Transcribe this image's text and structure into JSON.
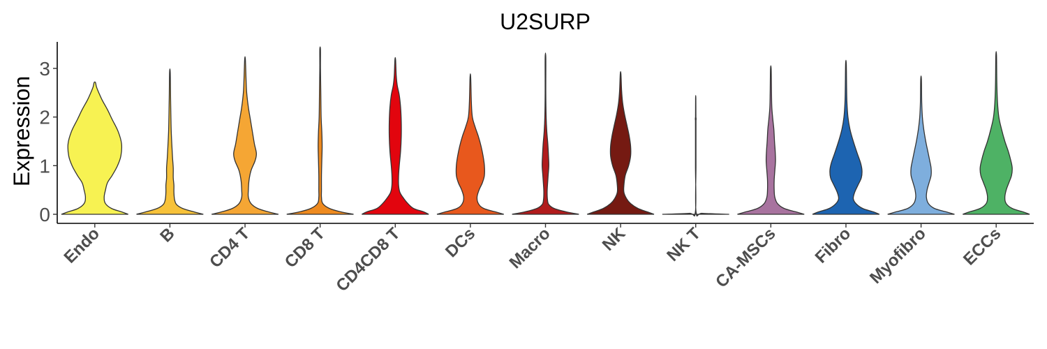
{
  "chart_data": {
    "type": "violin",
    "title": "U2SURP",
    "xlabel": "",
    "ylabel": "Expression",
    "ylim": [
      -0.16,
      3.56
    ],
    "yticks": [
      0,
      1,
      2,
      3
    ],
    "grid": false,
    "legend": "none",
    "categories": [
      {
        "name": "Endo",
        "color": "#F7F252",
        "max": 2.71,
        "profile": [
          [
            0,
            1.0
          ],
          [
            0.05,
            0.8
          ],
          [
            0.12,
            0.5
          ],
          [
            0.22,
            0.32
          ],
          [
            0.35,
            0.28
          ],
          [
            0.5,
            0.32
          ],
          [
            0.65,
            0.38
          ],
          [
            0.8,
            0.52
          ],
          [
            1.0,
            0.68
          ],
          [
            1.2,
            0.78
          ],
          [
            1.45,
            0.8
          ],
          [
            1.7,
            0.7
          ],
          [
            1.95,
            0.52
          ],
          [
            2.15,
            0.38
          ],
          [
            2.35,
            0.22
          ],
          [
            2.5,
            0.12
          ],
          [
            2.62,
            0.05
          ],
          [
            2.71,
            0.02
          ]
        ]
      },
      {
        "name": "B",
        "color": "#F7C23A",
        "max": 2.92,
        "profile": [
          [
            0,
            1.0
          ],
          [
            0.05,
            0.72
          ],
          [
            0.12,
            0.38
          ],
          [
            0.2,
            0.2
          ],
          [
            0.3,
            0.14
          ],
          [
            0.45,
            0.12
          ],
          [
            0.6,
            0.12
          ],
          [
            0.75,
            0.1
          ],
          [
            0.95,
            0.1
          ],
          [
            1.15,
            0.08
          ],
          [
            1.4,
            0.06
          ],
          [
            1.7,
            0.04
          ],
          [
            2.0,
            0.03
          ],
          [
            2.4,
            0.02
          ],
          [
            2.92,
            0.01
          ]
        ]
      },
      {
        "name": "CD4 T",
        "color": "#F5A634",
        "max": 3.19,
        "profile": [
          [
            0,
            1.0
          ],
          [
            0.05,
            0.7
          ],
          [
            0.12,
            0.38
          ],
          [
            0.22,
            0.18
          ],
          [
            0.35,
            0.1
          ],
          [
            0.5,
            0.1
          ],
          [
            0.7,
            0.12
          ],
          [
            0.9,
            0.18
          ],
          [
            1.1,
            0.3
          ],
          [
            1.25,
            0.34
          ],
          [
            1.45,
            0.28
          ],
          [
            1.7,
            0.22
          ],
          [
            1.95,
            0.16
          ],
          [
            2.2,
            0.1
          ],
          [
            2.5,
            0.05
          ],
          [
            2.8,
            0.03
          ],
          [
            3.19,
            0.01
          ]
        ]
      },
      {
        "name": "CD8 T",
        "color": "#EE8A1F",
        "max": 3.39,
        "profile": [
          [
            0,
            1.0
          ],
          [
            0.05,
            0.62
          ],
          [
            0.12,
            0.28
          ],
          [
            0.22,
            0.08
          ],
          [
            0.35,
            0.04
          ],
          [
            0.5,
            0.04
          ],
          [
            0.8,
            0.04
          ],
          [
            1.1,
            0.05
          ],
          [
            1.4,
            0.06
          ],
          [
            1.7,
            0.05
          ],
          [
            2.0,
            0.03
          ],
          [
            2.5,
            0.02
          ],
          [
            3.0,
            0.01
          ],
          [
            3.39,
            0.01
          ]
        ]
      },
      {
        "name": "CD4CD8 T",
        "color": "#E2050E",
        "max": 3.18,
        "profile": [
          [
            0,
            1.0
          ],
          [
            0.05,
            0.85
          ],
          [
            0.12,
            0.55
          ],
          [
            0.22,
            0.38
          ],
          [
            0.32,
            0.26
          ],
          [
            0.45,
            0.14
          ],
          [
            0.6,
            0.1
          ],
          [
            0.8,
            0.1
          ],
          [
            1.0,
            0.12
          ],
          [
            1.3,
            0.16
          ],
          [
            1.6,
            0.18
          ],
          [
            1.9,
            0.18
          ],
          [
            2.2,
            0.16
          ],
          [
            2.45,
            0.12
          ],
          [
            2.65,
            0.06
          ],
          [
            2.85,
            0.03
          ],
          [
            3.18,
            0.01
          ]
        ]
      },
      {
        "name": "DCs",
        "color": "#E8581D",
        "max": 2.82,
        "profile": [
          [
            0,
            1.0
          ],
          [
            0.05,
            0.75
          ],
          [
            0.12,
            0.4
          ],
          [
            0.22,
            0.24
          ],
          [
            0.35,
            0.2
          ],
          [
            0.5,
            0.26
          ],
          [
            0.65,
            0.36
          ],
          [
            0.8,
            0.42
          ],
          [
            1.0,
            0.42
          ],
          [
            1.2,
            0.38
          ],
          [
            1.4,
            0.32
          ],
          [
            1.6,
            0.24
          ],
          [
            1.8,
            0.14
          ],
          [
            2.0,
            0.06
          ],
          [
            2.3,
            0.03
          ],
          [
            2.82,
            0.01
          ]
        ]
      },
      {
        "name": "Macro",
        "color": "#B11B1C",
        "max": 3.22,
        "profile": [
          [
            0,
            1.0
          ],
          [
            0.05,
            0.62
          ],
          [
            0.12,
            0.26
          ],
          [
            0.2,
            0.1
          ],
          [
            0.3,
            0.06
          ],
          [
            0.45,
            0.05
          ],
          [
            0.6,
            0.06
          ],
          [
            0.8,
            0.08
          ],
          [
            1.0,
            0.1
          ],
          [
            1.2,
            0.09
          ],
          [
            1.45,
            0.07
          ],
          [
            1.7,
            0.04
          ],
          [
            2.0,
            0.02
          ],
          [
            2.5,
            0.01
          ],
          [
            3.22,
            0.01
          ]
        ]
      },
      {
        "name": "NK",
        "color": "#751A12",
        "max": 2.89,
        "profile": [
          [
            0,
            1.0
          ],
          [
            0.05,
            0.8
          ],
          [
            0.12,
            0.52
          ],
          [
            0.22,
            0.3
          ],
          [
            0.32,
            0.18
          ],
          [
            0.45,
            0.1
          ],
          [
            0.6,
            0.1
          ],
          [
            0.8,
            0.14
          ],
          [
            1.0,
            0.24
          ],
          [
            1.2,
            0.3
          ],
          [
            1.4,
            0.3
          ],
          [
            1.6,
            0.26
          ],
          [
            1.8,
            0.2
          ],
          [
            2.05,
            0.12
          ],
          [
            2.3,
            0.06
          ],
          [
            2.55,
            0.03
          ],
          [
            2.89,
            0.01
          ]
        ]
      },
      {
        "name": "NK T",
        "color": "#6E6E6E",
        "max": 2.39,
        "profile": [
          [
            0,
            1.0
          ],
          [
            0.02,
            0.2
          ],
          [
            0.05,
            0.01
          ],
          [
            1.0,
            0.008
          ],
          [
            1.9,
            0.008
          ],
          [
            1.95,
            0.012
          ],
          [
            2.0,
            0.006
          ],
          [
            2.39,
            0.004
          ]
        ]
      },
      {
        "name": "CA-MSCs",
        "color": "#A8739F",
        "max": 2.99,
        "profile": [
          [
            0,
            1.0
          ],
          [
            0.05,
            0.75
          ],
          [
            0.12,
            0.4
          ],
          [
            0.22,
            0.2
          ],
          [
            0.35,
            0.12
          ],
          [
            0.5,
            0.1
          ],
          [
            0.7,
            0.1
          ],
          [
            0.9,
            0.12
          ],
          [
            1.1,
            0.14
          ],
          [
            1.3,
            0.13
          ],
          [
            1.5,
            0.11
          ],
          [
            1.75,
            0.09
          ],
          [
            1.95,
            0.06
          ],
          [
            2.2,
            0.03
          ],
          [
            2.5,
            0.02
          ],
          [
            2.99,
            0.01
          ]
        ]
      },
      {
        "name": "Fibro",
        "color": "#1D64B1",
        "max": 3.1,
        "profile": [
          [
            0,
            1.0
          ],
          [
            0.05,
            0.82
          ],
          [
            0.12,
            0.5
          ],
          [
            0.22,
            0.3
          ],
          [
            0.32,
            0.22
          ],
          [
            0.45,
            0.26
          ],
          [
            0.6,
            0.36
          ],
          [
            0.75,
            0.46
          ],
          [
            0.9,
            0.48
          ],
          [
            1.05,
            0.44
          ],
          [
            1.25,
            0.34
          ],
          [
            1.5,
            0.22
          ],
          [
            1.75,
            0.12
          ],
          [
            2.0,
            0.06
          ],
          [
            2.3,
            0.03
          ],
          [
            2.6,
            0.02
          ],
          [
            3.1,
            0.01
          ]
        ]
      },
      {
        "name": "Myofibro",
        "color": "#7EAEDD",
        "max": 2.78,
        "profile": [
          [
            0,
            1.0
          ],
          [
            0.05,
            0.75
          ],
          [
            0.12,
            0.4
          ],
          [
            0.22,
            0.22
          ],
          [
            0.35,
            0.16
          ],
          [
            0.5,
            0.18
          ],
          [
            0.65,
            0.24
          ],
          [
            0.8,
            0.3
          ],
          [
            0.95,
            0.3
          ],
          [
            1.1,
            0.26
          ],
          [
            1.3,
            0.2
          ],
          [
            1.5,
            0.14
          ],
          [
            1.75,
            0.08
          ],
          [
            2.0,
            0.04
          ],
          [
            2.3,
            0.02
          ],
          [
            2.78,
            0.01
          ]
        ]
      },
      {
        "name": "ECCs",
        "color": "#4EB265",
        "max": 3.27,
        "profile": [
          [
            0,
            1.0
          ],
          [
            0.05,
            0.8
          ],
          [
            0.12,
            0.48
          ],
          [
            0.22,
            0.3
          ],
          [
            0.35,
            0.26
          ],
          [
            0.5,
            0.3
          ],
          [
            0.65,
            0.38
          ],
          [
            0.8,
            0.46
          ],
          [
            0.95,
            0.48
          ],
          [
            1.1,
            0.44
          ],
          [
            1.3,
            0.36
          ],
          [
            1.5,
            0.26
          ],
          [
            1.75,
            0.16
          ],
          [
            2.0,
            0.08
          ],
          [
            2.3,
            0.04
          ],
          [
            2.7,
            0.02
          ],
          [
            3.27,
            0.01
          ]
        ]
      }
    ]
  }
}
